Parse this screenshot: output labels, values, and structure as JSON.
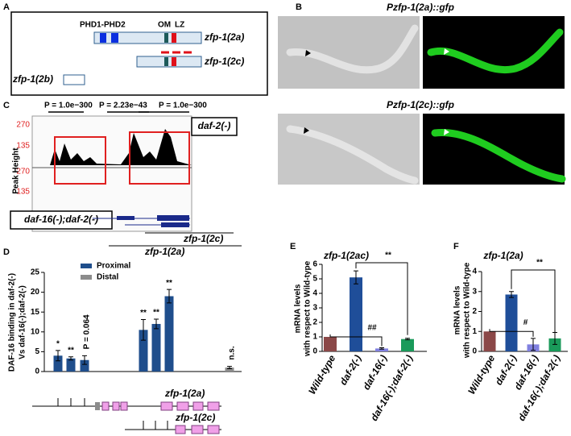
{
  "panel_labels": [
    "A",
    "B",
    "C",
    "D",
    "E",
    "F"
  ],
  "panel_a": {
    "domains_label": "PHD1-PHD2",
    "om_label": "OM",
    "lz_label": "LZ",
    "isoforms": [
      "zfp-1(2a)",
      "zfp-1(2c)",
      "zfp-1(2b)"
    ]
  },
  "panel_b": {
    "images": [
      {
        "title": "Pzfp-1(2a)::gfp"
      },
      {
        "title": "Pzfp-1(2c)::gfp"
      }
    ]
  },
  "panel_c": {
    "p_values": [
      "P = 1.0e−300",
      "P = 2.23e−43",
      "P = 1.0e−300"
    ],
    "track_labels": [
      "daf-2(-)",
      "daf-16(-);daf-2(-)"
    ],
    "axis_label": "Peak Height",
    "scale_ticks": [
      270,
      135
    ],
    "gene_labels": [
      "zfp-1(2c)",
      "zfp-1(2a)"
    ]
  },
  "chart_data": [
    {
      "type": "bar",
      "y_label": [
        "DAF-16 binding in daf-2(-)",
        "Vs daf-16(-);daf-2(-)"
      ],
      "categories": [
        null,
        null,
        null,
        null,
        null,
        null,
        null
      ],
      "series": [
        {
          "name": "Proximal",
          "color": "#1f4e8c",
          "values": [
            4,
            3.3,
            2.9,
            10.5,
            12,
            19,
            null
          ],
          "errors": [
            1.3,
            0.4,
            1.1,
            2.6,
            1.2,
            1.7,
            null
          ]
        },
        {
          "name": "Distal",
          "color": "#8c8c8c",
          "values": [
            null,
            null,
            null,
            null,
            null,
            null,
            1
          ],
          "errors": [
            null,
            null,
            null,
            null,
            null,
            null,
            0.3
          ]
        }
      ],
      "ylim": [
        0,
        25
      ],
      "yticks": [
        0,
        5,
        10,
        15,
        20,
        25
      ],
      "bar_annotations": [
        "*",
        "**",
        "P = 0.064",
        "**",
        "**",
        "**",
        "n.s."
      ],
      "gene_labels": [
        "zfp-1(2a)",
        "zfp-1(2c)"
      ]
    },
    {
      "type": "bar",
      "title": "zfp-1(2ac)",
      "y_label": [
        "mRNA levels",
        "with respect to Wild-type"
      ],
      "categories": [
        "Wild-type",
        "daf-2(-)",
        "daf-16(-)",
        "daf-16(-);daf-2(-)"
      ],
      "values": [
        1,
        5.1,
        0.2,
        0.85
      ],
      "errors": [
        null,
        0.45,
        0.05,
        0.05
      ],
      "colors": [
        "#8b4848",
        "#1f4e99",
        "#8080e0",
        "#1a9a5a"
      ],
      "ylim": [
        0,
        6
      ],
      "yticks": [
        0,
        1,
        2,
        3,
        4,
        5,
        6
      ],
      "significance": [
        "**",
        "##"
      ]
    },
    {
      "type": "bar",
      "title": "zfp-1(2a)",
      "y_label": [
        "mRNA levels",
        "with respect to Wild-type"
      ],
      "categories": [
        "Wild-type",
        "daf-2(-)",
        "daf-16(-)",
        "daf-16(-);daf-2(-)"
      ],
      "values": [
        1,
        2.85,
        0.35,
        0.65
      ],
      "errors": [
        null,
        0.15,
        0.3,
        0.3
      ],
      "colors": [
        "#8b4848",
        "#1f4e99",
        "#8080e0",
        "#1a9a5a"
      ],
      "ylim": [
        0,
        4
      ],
      "yticks": [
        0,
        1,
        2,
        3,
        4
      ],
      "significance": [
        "**",
        "#"
      ]
    }
  ]
}
